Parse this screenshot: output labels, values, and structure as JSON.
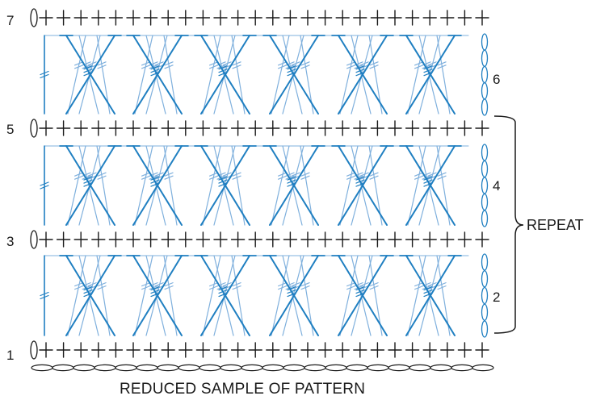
{
  "diagram": {
    "caption": "REDUCED SAMPLE OF PATTERN",
    "repeat_label": "REPEAT",
    "row_numbers_left": [
      "1",
      "3",
      "5",
      "7"
    ],
    "row_numbers_right": [
      "2",
      "4",
      "6"
    ],
    "colors": {
      "ink": "#1a1a1a",
      "stitch_dark": "#1f7fc1",
      "stitch_light": "#7fb0dd"
    }
  }
}
